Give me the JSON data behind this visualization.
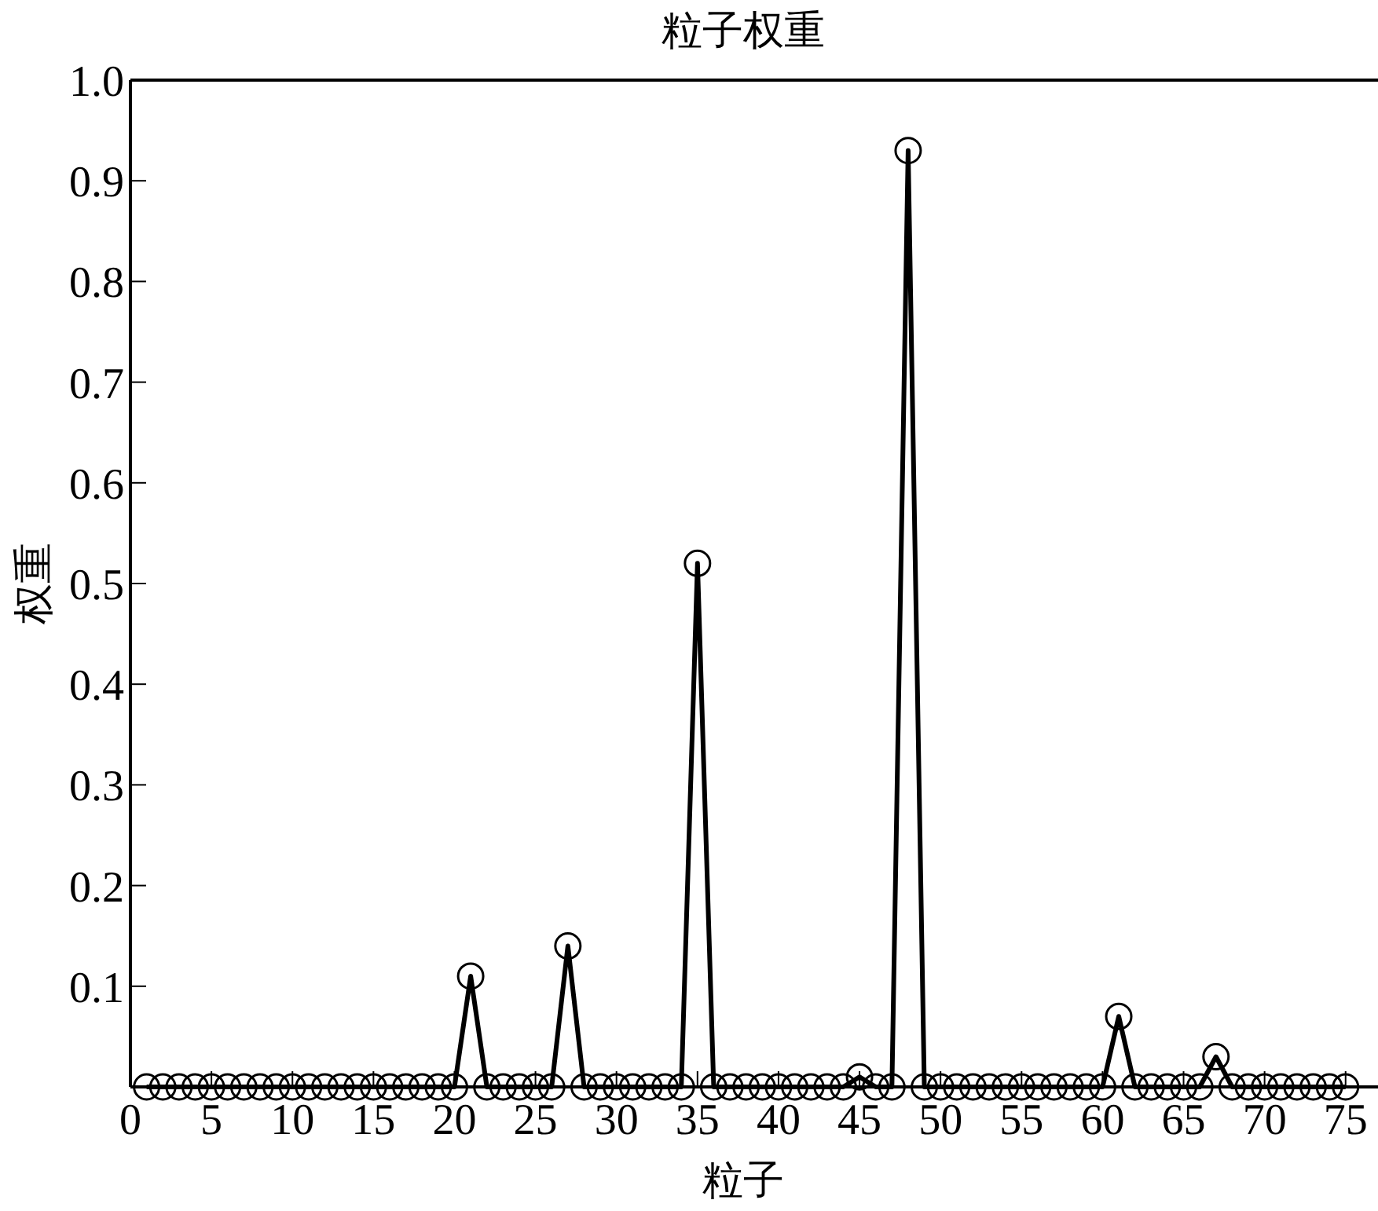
{
  "chart_data": {
    "type": "line",
    "title": "粒子权重",
    "xlabel": "粒子",
    "ylabel": "权重",
    "xlim": [
      0,
      77
    ],
    "xticks": [
      0,
      5,
      10,
      15,
      20,
      25,
      30,
      35,
      40,
      45,
      50,
      55,
      60,
      65,
      70,
      75
    ],
    "ylim": [
      0,
      1
    ],
    "yticks": [
      0.1,
      0.2,
      0.3,
      0.4,
      0.5,
      0.6,
      0.7,
      0.8,
      0.9,
      {
        "value": 1,
        "label": "1.0"
      }
    ],
    "grid": false,
    "marker": "circle",
    "line_style": "solid",
    "series": [
      {
        "color": "#000000",
        "x": [
          1,
          2,
          3,
          4,
          5,
          6,
          7,
          8,
          9,
          10,
          11,
          12,
          13,
          14,
          15,
          16,
          17,
          18,
          19,
          20,
          21,
          22,
          23,
          24,
          25,
          26,
          27,
          28,
          29,
          30,
          31,
          32,
          33,
          34,
          35,
          36,
          37,
          38,
          39,
          40,
          41,
          42,
          43,
          44,
          45,
          46,
          47,
          48,
          49,
          50,
          51,
          52,
          53,
          54,
          55,
          56,
          57,
          58,
          59,
          60,
          61,
          62,
          63,
          64,
          65,
          66,
          67,
          68,
          69,
          70,
          71,
          72,
          73,
          74,
          75
        ],
        "values": [
          0,
          0,
          0,
          0,
          0,
          0,
          0,
          0,
          0,
          0,
          0,
          0,
          0,
          0,
          0,
          0,
          0,
          0,
          0,
          0,
          0.11,
          0,
          0,
          0,
          0,
          0,
          0.14,
          0,
          0,
          0,
          0,
          0,
          0,
          0,
          0.52,
          0,
          0,
          0,
          0,
          0,
          0,
          0,
          0,
          0,
          0.01,
          0,
          0,
          0.93,
          0,
          0,
          0,
          0,
          0,
          0,
          0,
          0,
          0,
          0,
          0,
          0,
          0.07,
          0,
          0,
          0,
          0,
          0,
          0.03,
          0,
          0,
          0,
          0,
          0,
          0,
          0,
          0
        ]
      }
    ]
  }
}
